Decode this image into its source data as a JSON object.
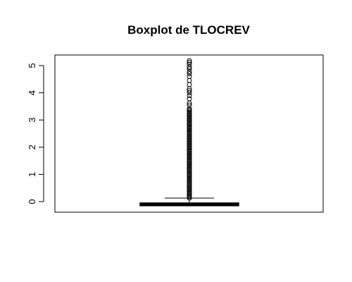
{
  "chart_data": {
    "type": "boxplot",
    "title": "Boxplot de TLOCREV",
    "xlabel": "",
    "ylabel": "",
    "ylim": [
      -0.35,
      5.5
    ],
    "yticks": [
      0,
      1,
      2,
      3,
      4,
      5
    ],
    "ytick_labels": [
      "0",
      "1",
      "2",
      "3",
      "4",
      "5"
    ],
    "grid": false,
    "series": [
      {
        "min": -0.15,
        "q1": -0.15,
        "median": -0.1,
        "q3": -0.05,
        "whisker_high": 0.13,
        "outliers_dense_range": [
          0.13,
          3.45
        ],
        "outliers": [
          3.55,
          3.62,
          3.78,
          3.9,
          4.0,
          4.08,
          4.15,
          4.3,
          4.45,
          4.6,
          4.7,
          4.78,
          4.88,
          4.95,
          5.05,
          5.12,
          5.18
        ]
      }
    ],
    "colors": {
      "box_fill": "#ffffff",
      "stroke": "#000000"
    }
  }
}
